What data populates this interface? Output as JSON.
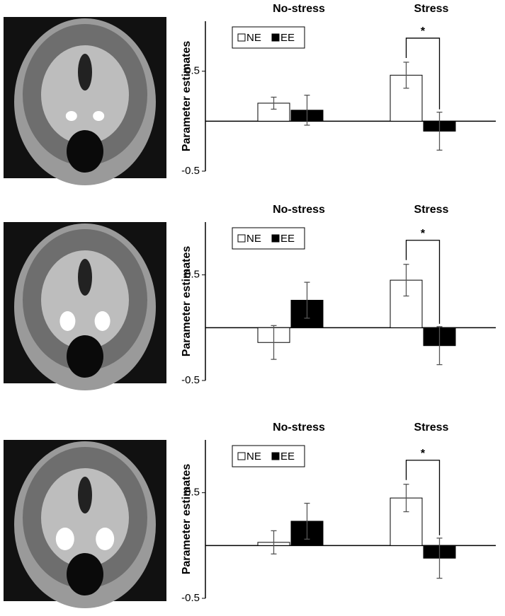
{
  "chart_data": [
    {
      "type": "bar",
      "categories": [
        "No-stress",
        "Stress"
      ],
      "y_label": "Parameter estimates",
      "series": [
        {
          "name": "NE",
          "color": "#ffffff",
          "values": [
            0.18,
            0.46
          ],
          "errors": [
            0.06,
            0.13
          ]
        },
        {
          "name": "EE",
          "color": "#000000",
          "values": [
            0.11,
            -0.1
          ],
          "errors": [
            0.15,
            0.19
          ]
        }
      ],
      "ylim": [
        -0.5,
        1
      ],
      "yticks": [
        -0.5,
        0.5
      ],
      "annotation": "*"
    },
    {
      "type": "bar",
      "categories": [
        "No-stress",
        "Stress"
      ],
      "y_label": "Parameter estimates",
      "series": [
        {
          "name": "NE",
          "color": "#ffffff",
          "values": [
            -0.14,
            0.45
          ],
          "errors": [
            0.16,
            0.15
          ]
        },
        {
          "name": "EE",
          "color": "#000000",
          "values": [
            0.26,
            -0.17
          ],
          "errors": [
            0.17,
            0.18
          ]
        }
      ],
      "ylim": [
        -0.5,
        1
      ],
      "yticks": [
        -0.5,
        0.5
      ],
      "annotation": "*"
    },
    {
      "type": "bar",
      "categories": [
        "No-stress",
        "Stress"
      ],
      "y_label": "Parameter estimates",
      "series": [
        {
          "name": "NE",
          "color": "#ffffff",
          "values": [
            0.03,
            0.45
          ],
          "errors": [
            0.11,
            0.13
          ]
        },
        {
          "name": "EE",
          "color": "#000000",
          "values": [
            0.23,
            -0.12
          ],
          "errors": [
            0.17,
            0.19
          ]
        }
      ],
      "ylim": [
        -0.5,
        1
      ],
      "yticks": [
        -0.5,
        0.5
      ],
      "annotation": "*"
    }
  ]
}
